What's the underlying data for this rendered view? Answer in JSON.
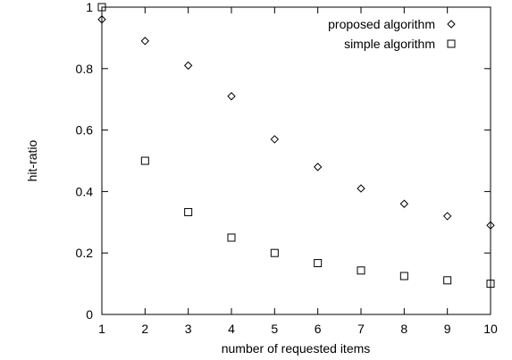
{
  "chart_data": {
    "type": "scatter",
    "title": "",
    "xlabel": "number of requested items",
    "ylabel": "hit-ratio",
    "xlim": [
      1,
      10
    ],
    "ylim": [
      0,
      1
    ],
    "x_ticks": [
      "1",
      "2",
      "3",
      "4",
      "5",
      "6",
      "7",
      "8",
      "9",
      "10"
    ],
    "y_ticks": [
      "0",
      "0.2",
      "0.4",
      "0.6",
      "0.8",
      "1"
    ],
    "grid": false,
    "legend": "top-right",
    "series": [
      {
        "name": "proposed algorithm",
        "marker": "diamond",
        "x": [
          1,
          2,
          3,
          4,
          5,
          6,
          7,
          8,
          9,
          10
        ],
        "y": [
          0.96,
          0.89,
          0.81,
          0.71,
          0.57,
          0.48,
          0.41,
          0.36,
          0.32,
          0.29
        ]
      },
      {
        "name": "simple algorithm",
        "marker": "square",
        "x": [
          1,
          2,
          3,
          4,
          5,
          6,
          7,
          8,
          9,
          10
        ],
        "y": [
          1.0,
          0.5,
          0.333,
          0.25,
          0.2,
          0.167,
          0.143,
          0.125,
          0.111,
          0.1
        ]
      }
    ]
  }
}
